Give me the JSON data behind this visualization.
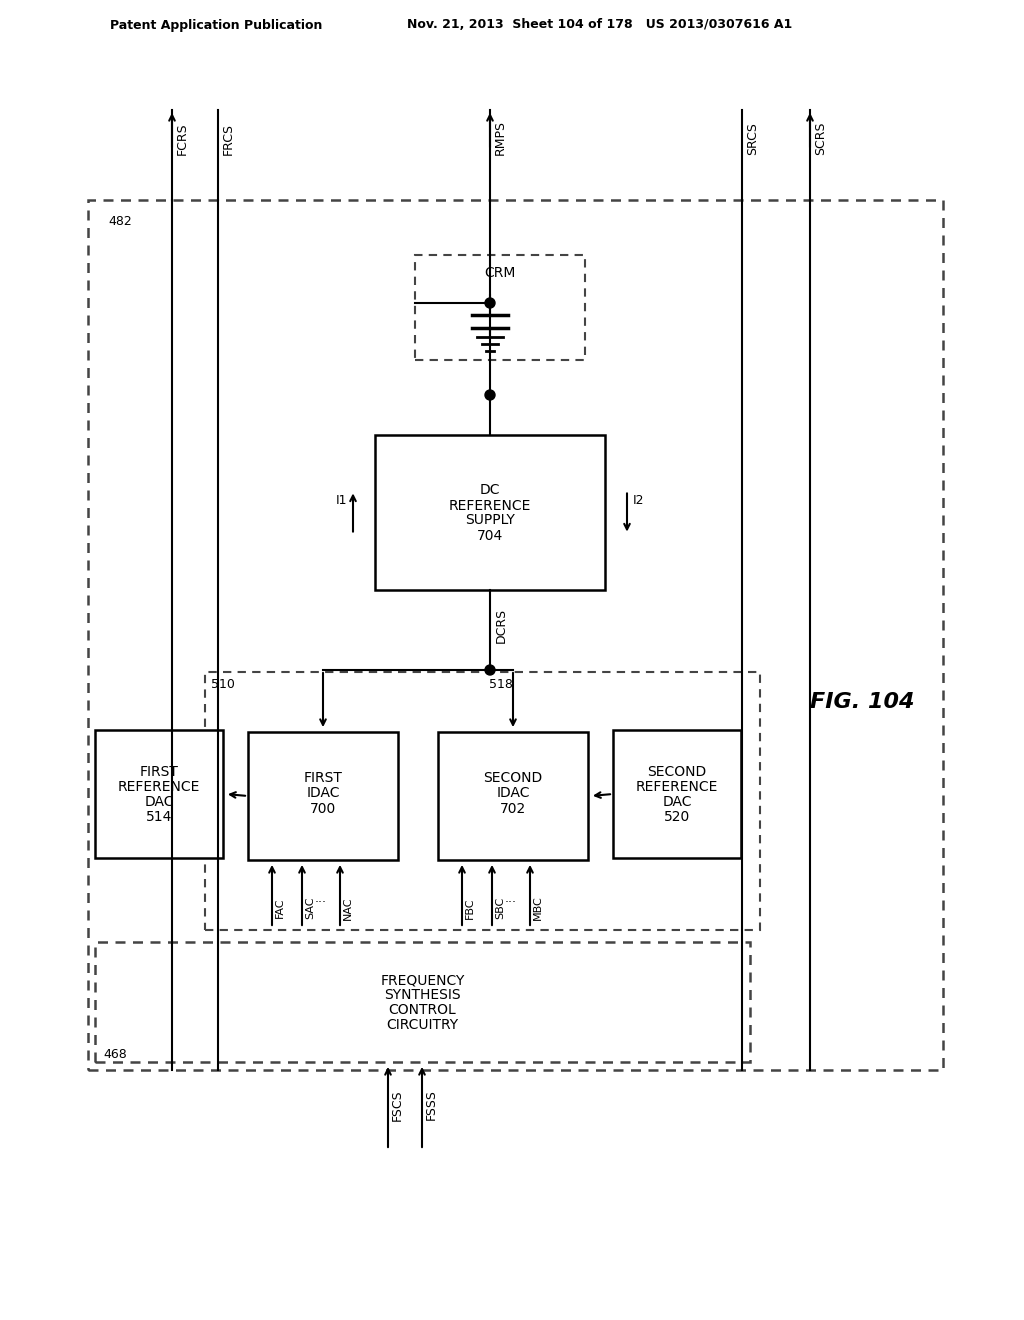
{
  "header_left": "Patent Application Publication",
  "header_right": "Nov. 21, 2013  Sheet 104 of 178   US 2013/0307616 A1",
  "fig_label": "FIG. 104",
  "background": "#ffffff",
  "line_color": "#000000",
  "dashed_color": "#555555"
}
